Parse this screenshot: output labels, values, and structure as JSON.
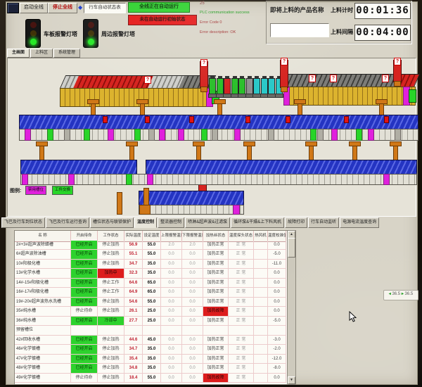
{
  "toolbar": {
    "start_all": "启动全线",
    "stop_all": "停止全线",
    "diamond": "◆",
    "crane_status": "行车自动状态表",
    "status_running": "全线正在自动运行",
    "status_warning": "未在自动运行初始状态",
    "plc_count": "25",
    "plc_comm": "PLC communication success",
    "plc_error_code": "Error Code 0",
    "plc_error_desc": "Error description: OK"
  },
  "product": {
    "label": "即将上料的产品名称",
    "value": ""
  },
  "timers": {
    "t1_label": "上料计时",
    "t1_value": "00:01:36",
    "t2_label": "上料间隔",
    "t2_value": "00:04:00"
  },
  "towers": {
    "left": "车板报警灯塔",
    "right": "周边报警灯塔"
  },
  "nav_tabs": [
    {
      "label": "主画面",
      "active": true
    },
    {
      "label": "上料区",
      "active": false
    },
    {
      "label": "系统管理",
      "active": false
    }
  ],
  "legend": {
    "title": "图例:",
    "items": [
      {
        "label": "禁用槽位",
        "color": "#e020dd"
      },
      {
        "label": "工件交换",
        "color": "#28d528"
      }
    ]
  },
  "diagram": {
    "marker": "?"
  },
  "section_tabs": [
    {
      "label": "飞巴及行车到位状态",
      "active": false
    },
    {
      "label": "飞巴及行车运行查询",
      "active": false
    },
    {
      "label": "槽位状态与联锁保护",
      "active": false
    },
    {
      "label": "温度控制",
      "active": true
    },
    {
      "label": "整流器控制",
      "active": false
    },
    {
      "label": "喷淋&超声波&过滤泵",
      "active": false
    },
    {
      "label": "循环泵&干燥&上下料风机",
      "active": false
    },
    {
      "label": "故障打印",
      "active": false
    },
    {
      "label": "行车自动监听",
      "active": false
    },
    {
      "label": "电源电流温度查询",
      "active": false
    }
  ],
  "table": {
    "columns": [
      "名 称",
      "开启待命",
      "工作状态",
      "实际温度",
      "设定温度",
      "上限报警温度",
      "下限报警温度",
      "加热丝状态",
      "温度探头状态",
      "热风机",
      "温度校准值"
    ],
    "rows": [
      {
        "name": "2#+3#超声波除蜡槽",
        "ready": "已经开启",
        "ready_state": "green",
        "work": "停止加热",
        "work_state": "",
        "actual": "56.9",
        "set": "55.0",
        "high": "2.0",
        "low": "2.0",
        "heater": "加热正常",
        "heater_state": "",
        "probe": "正 常",
        "fan": "",
        "cal": "0.0"
      },
      {
        "name": "6#超声波除油槽",
        "ready": "已经开启",
        "ready_state": "green",
        "work": "停止加热",
        "work_state": "",
        "actual": "55.1",
        "set": "55.0",
        "high": "0.0",
        "low": "0.0",
        "heater": "加热正常",
        "heater_state": "",
        "probe": "正 常",
        "fan": "",
        "cal": "-5.0"
      },
      {
        "name": "10#阳极化槽",
        "ready": "已经开启",
        "ready_state": "green",
        "work": "停止加热",
        "work_state": "",
        "actual": "34.7",
        "set": "35.0",
        "high": "0.0",
        "low": "0.0",
        "heater": "加热正常",
        "heater_state": "",
        "probe": "正 常",
        "fan": "",
        "cal": "-11.0"
      },
      {
        "name": "13#化学水槽",
        "ready": "已经开启",
        "ready_state": "green",
        "work": "加热中",
        "work_state": "red",
        "actual": "32.3",
        "set": "35.0",
        "high": "0.0",
        "low": "0.0",
        "heater": "加热正常",
        "heater_state": "",
        "probe": "正 常",
        "fan": "",
        "cal": "0.0"
      },
      {
        "name": "14#-15#阳极化槽",
        "ready": "已经开启",
        "ready_state": "green",
        "work": "停止工作",
        "work_state": "",
        "actual": "64.6",
        "set": "65.0",
        "high": "0.0",
        "low": "0.0",
        "heater": "加热正常",
        "heater_state": "",
        "probe": "正 常",
        "fan": "",
        "cal": "0.0"
      },
      {
        "name": "16#-17#阳极化槽",
        "ready": "已经开启",
        "ready_state": "green",
        "work": "停止工作",
        "work_state": "",
        "actual": "64.9",
        "set": "65.0",
        "high": "0.0",
        "low": "0.0",
        "heater": "加热正常",
        "heater_state": "",
        "probe": "正 常",
        "fan": "",
        "cal": "0.0"
      },
      {
        "name": "19#-20#超声波热水洗槽",
        "ready": "已经开启",
        "ready_state": "green",
        "work": "停止加热",
        "work_state": "",
        "actual": "54.6",
        "set": "55.0",
        "high": "0.0",
        "low": "0.0",
        "heater": "加热正常",
        "heater_state": "",
        "probe": "正 常",
        "fan": "",
        "cal": "0.0"
      },
      {
        "name": "35#纯水槽",
        "ready": "停止待命",
        "ready_state": "",
        "work": "停止加热",
        "work_state": "",
        "actual": "26.1",
        "set": "25.0",
        "high": "0.0",
        "low": "0.0",
        "heater": "加热故障",
        "heater_state": "red",
        "probe": "正 常",
        "fan": "",
        "cal": "0.0"
      },
      {
        "name": "36#纯水槽",
        "ready": "已经开启",
        "ready_state": "green",
        "work": "冷却中",
        "work_state": "green",
        "actual": "27.7",
        "set": "25.0",
        "high": "0.0",
        "low": "0.0",
        "heater": "加热正常",
        "heater_state": "",
        "probe": "正 常",
        "fan": "",
        "cal": "-5.0"
      },
      {
        "name": "预留槽位",
        "ready": "",
        "ready_state": "",
        "work": "",
        "work_state": "",
        "actual": "",
        "set": "",
        "high": "",
        "low": "",
        "heater": "",
        "heater_state": "",
        "probe": "",
        "fan": "",
        "cal": ""
      },
      {
        "name": "42#回收水槽",
        "ready": "已经开启",
        "ready_state": "green",
        "work": "停止加热",
        "work_state": "",
        "actual": "44.6",
        "set": "45.0",
        "high": "0.0",
        "low": "0.0",
        "heater": "加热正常",
        "heater_state": "",
        "probe": "正 常",
        "fan": "",
        "cal": "-3.0"
      },
      {
        "name": "46#化学镀槽",
        "ready": "已经开启",
        "ready_state": "green",
        "work": "停止加热",
        "work_state": "",
        "actual": "34.7",
        "set": "35.0",
        "high": "0.0",
        "low": "0.0",
        "heater": "加热正常",
        "heater_state": "",
        "probe": "正 常",
        "fan": "",
        "cal": "-2.0"
      },
      {
        "name": "47#化学镀槽",
        "ready": "已经开启",
        "ready_state": "green",
        "work": "停止加热",
        "work_state": "",
        "actual": "35.4",
        "set": "35.0",
        "high": "0.0",
        "low": "0.0",
        "heater": "加热正常",
        "heater_state": "",
        "probe": "正 常",
        "fan": "",
        "cal": "-12.0"
      },
      {
        "name": "48#化学镀槽",
        "ready": "已经开启",
        "ready_state": "green",
        "work": "停止加热",
        "work_state": "",
        "actual": "34.8",
        "set": "35.0",
        "high": "0.0",
        "low": "0.0",
        "heater": "加热正常",
        "heater_state": "",
        "probe": "正 常",
        "fan": "",
        "cal": "-8.0"
      },
      {
        "name": "49#化学镀槽",
        "ready": "停止待命",
        "ready_state": "",
        "work": "停止加热",
        "work_state": "",
        "actual": "18.4",
        "set": "55.0",
        "high": "0.0",
        "low": "0.0",
        "heater": "加热故障",
        "heater_state": "red",
        "probe": "正 常",
        "fan": "",
        "cal": "0.0"
      }
    ]
  },
  "readout": {
    "v1": "36.5",
    "v2": "36.5"
  }
}
